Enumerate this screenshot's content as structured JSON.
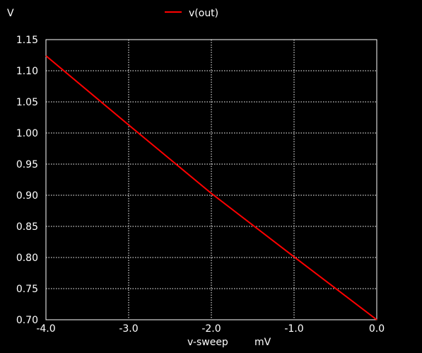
{
  "chart_data": {
    "type": "line",
    "title": "",
    "ylabel": "V",
    "xlabel": "v-sweep",
    "xunit": "mV",
    "xlim": [
      -4.0,
      0.0
    ],
    "ylim": [
      0.7,
      1.15
    ],
    "x_ticks": [
      -4.0,
      -3.0,
      -2.0,
      -1.0,
      0.0
    ],
    "x_tick_labels": [
      "-4.0",
      "-3.0",
      "-2.0",
      "-1.0",
      "0.0"
    ],
    "y_ticks": [
      0.7,
      0.75,
      0.8,
      0.85,
      0.9,
      0.95,
      1.0,
      1.05,
      1.1,
      1.15
    ],
    "y_tick_labels": [
      "0.70",
      "0.75",
      "0.80",
      "0.85",
      "0.90",
      "0.95",
      "1.00",
      "1.05",
      "1.10",
      "1.15"
    ],
    "grid": true,
    "legend_position": "top-center",
    "series": [
      {
        "name": "v(out)",
        "color": "#ff0000",
        "x": [
          -4.0,
          -3.0,
          -2.0,
          -1.0,
          0.0
        ],
        "y": [
          1.124,
          1.013,
          0.903,
          0.801,
          0.7
        ]
      }
    ]
  }
}
